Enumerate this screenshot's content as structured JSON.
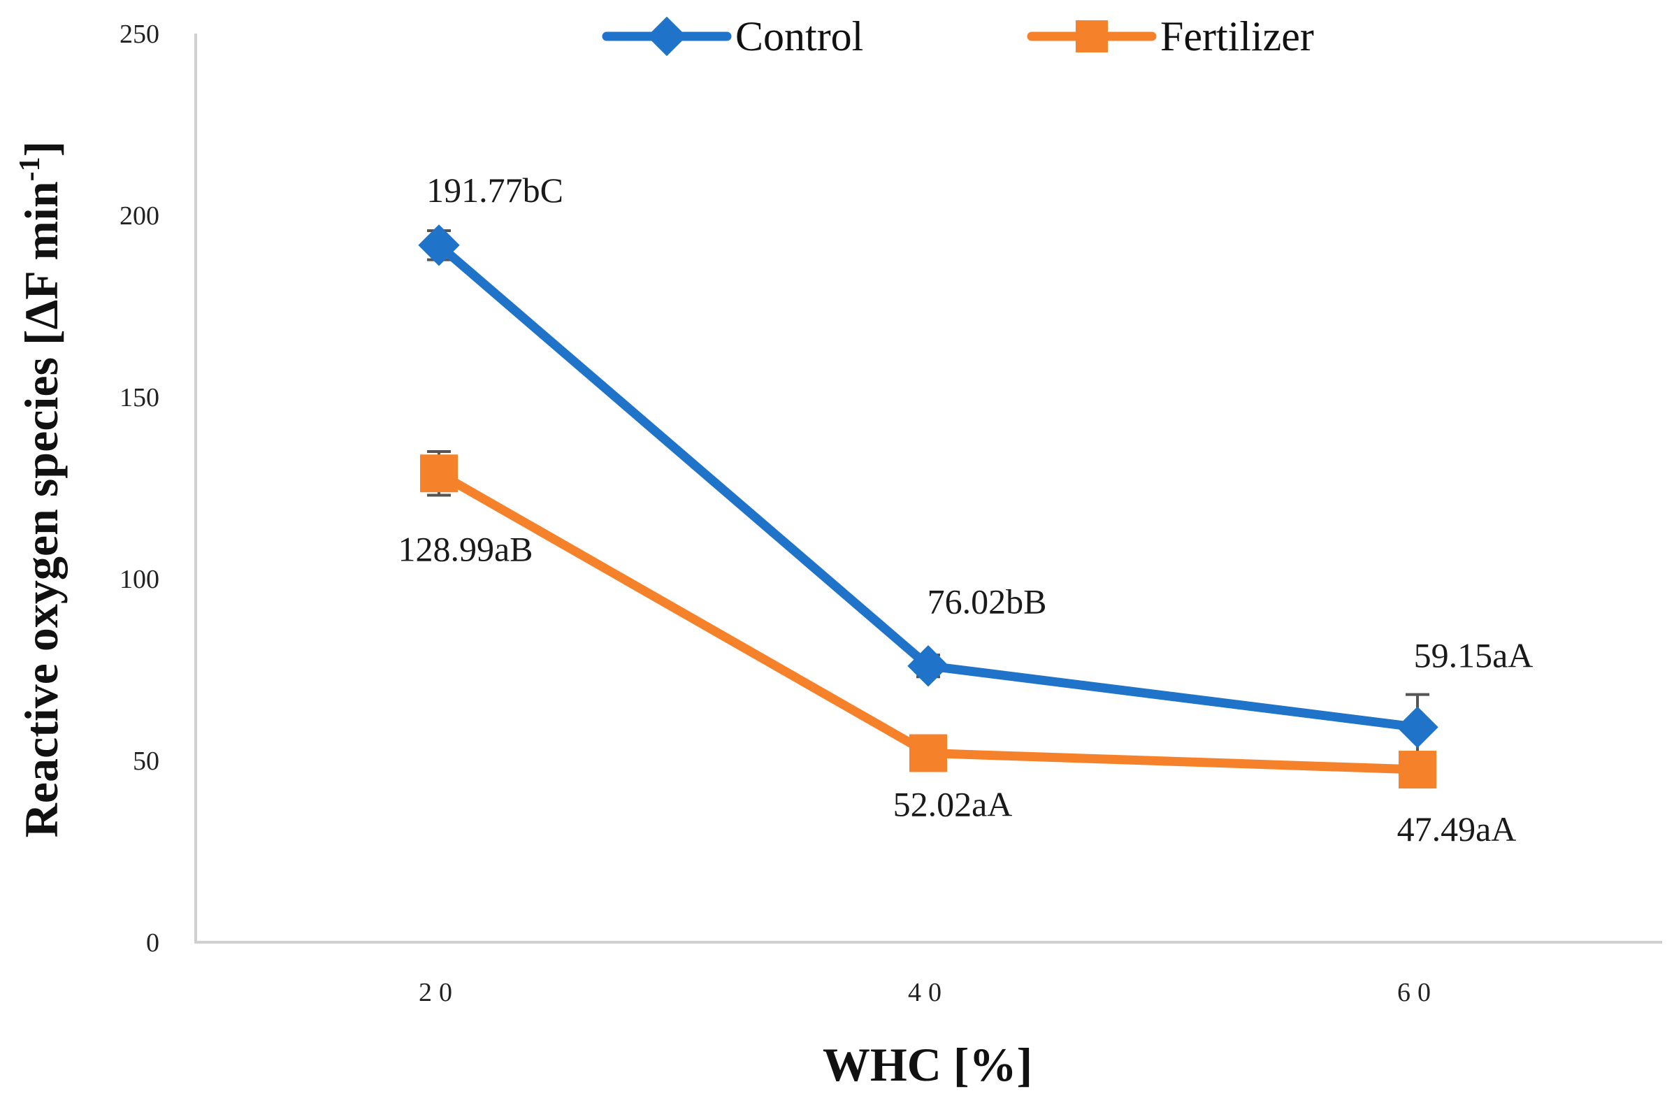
{
  "chart_data": {
    "type": "line",
    "title": "",
    "xlabel": "WHC [%]",
    "ylabel": {
      "main": "Reactive oxygen species [ΔF min",
      "superscript": "-1",
      "close": "]"
    },
    "categories": [
      "20",
      "40",
      "60"
    ],
    "ylim": [
      0,
      250
    ],
    "yticks": [
      0,
      50,
      100,
      150,
      200,
      250
    ],
    "grid": false,
    "legend": "top-center",
    "series": [
      {
        "name": "Control",
        "color": "#1f73c9",
        "marker": "diamond",
        "values": [
          191.77,
          76.02,
          59.15
        ],
        "errors": [
          4,
          3,
          9
        ],
        "labels": [
          "191.77bC",
          "76.02bB",
          "59.15aA"
        ]
      },
      {
        "name": "Fertilizer",
        "color": "#f5822a",
        "marker": "square",
        "values": [
          128.99,
          52.02,
          47.49
        ],
        "errors": [
          6,
          2,
          2
        ],
        "labels": [
          "128.99aB",
          "52.02aA",
          "47.49aA"
        ]
      }
    ]
  }
}
